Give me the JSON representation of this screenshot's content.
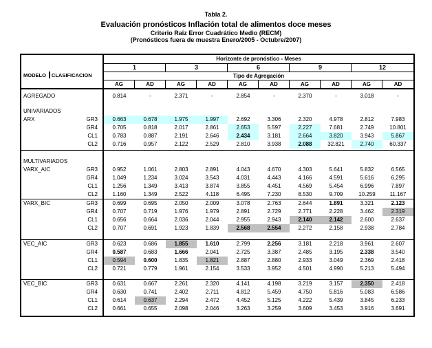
{
  "title": {
    "line1": "Tabla 2.",
    "line2": "Evaluación pronósticos Inflación total de alimentos doce meses",
    "line3": "Criterio Raiz Error Cuadrático Medio (RECM)",
    "line4": "(Pronósticos fuera de muestra Enero/2005 - Octubre/2007)"
  },
  "colors": {
    "highlight_cyan": "#CCFFFF",
    "highlight_gray": "#C0C0C0",
    "text": "#000000",
    "background": "#FFFFFF"
  },
  "table": {
    "modelo_label": "MODELO",
    "clasificacion_label": "CLASIFICACION",
    "horizonte_header": "Horizonte de pronóstico - Meses",
    "horizons": [
      "1",
      "3",
      "6",
      "9",
      "12"
    ],
    "tipo_header": "Tipo de Agregación",
    "agg_labels": [
      "AG",
      "AD"
    ],
    "rows": [
      {
        "kind": "blank",
        "h": 4
      },
      {
        "kind": "data",
        "model": "AGREGADO",
        "cls": "",
        "cells": [
          [
            "0.814",
            "",
            0
          ],
          [
            "-",
            "",
            0
          ],
          [
            "2.371",
            "",
            0
          ],
          [
            "-",
            "",
            0
          ],
          [
            "2.854",
            "",
            0
          ],
          [
            "-",
            "",
            0
          ],
          [
            "2.370",
            "",
            0
          ],
          [
            "-",
            "",
            0
          ],
          [
            "3.018",
            "",
            0
          ],
          [
            "-",
            "",
            0
          ]
        ]
      },
      {
        "kind": "blank",
        "h": 10
      },
      {
        "kind": "section",
        "model": "UNIVARIADOS"
      },
      {
        "kind": "data",
        "model": "ARX",
        "cls": "GR3",
        "cells": [
          [
            "0.663",
            "c",
            0
          ],
          [
            "0.678",
            "c",
            0
          ],
          [
            "1.975",
            "c",
            0
          ],
          [
            "1.997",
            "c",
            0
          ],
          [
            "2.692",
            "",
            0
          ],
          [
            "3.306",
            "",
            0
          ],
          [
            "2.320",
            "",
            0
          ],
          [
            "4.978",
            "",
            0
          ],
          [
            "2.812",
            "",
            0
          ],
          [
            "7.983",
            "",
            0
          ]
        ]
      },
      {
        "kind": "data",
        "model": "",
        "cls": "GR4",
        "cells": [
          [
            "0.705",
            "",
            0
          ],
          [
            "0.818",
            "",
            0
          ],
          [
            "2.017",
            "",
            0
          ],
          [
            "2.861",
            "",
            0
          ],
          [
            "2.653",
            "c",
            0
          ],
          [
            "5.597",
            "",
            0
          ],
          [
            "2.227",
            "c",
            0
          ],
          [
            "7.681",
            "",
            0
          ],
          [
            "2.749",
            "",
            0
          ],
          [
            "10.801",
            "",
            0
          ]
        ]
      },
      {
        "kind": "data",
        "model": "",
        "cls": "CL1",
        "cells": [
          [
            "0.783",
            "",
            0
          ],
          [
            "0.887",
            "",
            0
          ],
          [
            "2.191",
            "",
            0
          ],
          [
            "2.646",
            "",
            0
          ],
          [
            "2.434",
            "c",
            1
          ],
          [
            "3.181",
            "",
            0
          ],
          [
            "2.664",
            "c",
            0
          ],
          [
            "3.820",
            "c",
            0
          ],
          [
            "3.943",
            "",
            0
          ],
          [
            "5.867",
            "c",
            0
          ]
        ]
      },
      {
        "kind": "data",
        "model": "",
        "cls": "CL2",
        "cells": [
          [
            "0.716",
            "",
            0
          ],
          [
            "0.957",
            "",
            0
          ],
          [
            "2.122",
            "",
            0
          ],
          [
            "2.529",
            "",
            0
          ],
          [
            "2.810",
            "",
            0
          ],
          [
            "3.938",
            "",
            0
          ],
          [
            "2.088",
            "c",
            1
          ],
          [
            "32.821",
            "",
            0
          ],
          [
            "2.740",
            "c",
            0
          ],
          [
            "60.337",
            "",
            0
          ]
        ]
      },
      {
        "kind": "blank",
        "h": 2
      },
      {
        "kind": "rule"
      },
      {
        "kind": "blank",
        "h": 10
      },
      {
        "kind": "section",
        "model": "MULTIVARIADOS"
      },
      {
        "kind": "data",
        "model": "VARX_AIC",
        "cls": "GR3",
        "cells": [
          [
            "0.952",
            "",
            0
          ],
          [
            "1.061",
            "",
            0
          ],
          [
            "2.803",
            "",
            0
          ],
          [
            "2.891",
            "",
            0
          ],
          [
            "4.043",
            "",
            0
          ],
          [
            "4.670",
            "",
            0
          ],
          [
            "4.303",
            "",
            0
          ],
          [
            "5.641",
            "",
            0
          ],
          [
            "5.832",
            "",
            0
          ],
          [
            "6.565",
            "",
            0
          ]
        ]
      },
      {
        "kind": "data",
        "model": "",
        "cls": "GR4",
        "cells": [
          [
            "1.049",
            "",
            0
          ],
          [
            "1.234",
            "",
            0
          ],
          [
            "3.024",
            "",
            0
          ],
          [
            "3.543",
            "",
            0
          ],
          [
            "4.031",
            "",
            0
          ],
          [
            "4.443",
            "",
            0
          ],
          [
            "4.166",
            "",
            0
          ],
          [
            "4.591",
            "",
            0
          ],
          [
            "5.616",
            "",
            0
          ],
          [
            "6.295",
            "",
            0
          ]
        ]
      },
      {
        "kind": "data",
        "model": "",
        "cls": "CL1",
        "cells": [
          [
            "1.256",
            "",
            0
          ],
          [
            "1.349",
            "",
            0
          ],
          [
            "3.413",
            "",
            0
          ],
          [
            "3.874",
            "",
            0
          ],
          [
            "3.855",
            "",
            0
          ],
          [
            "4.451",
            "",
            0
          ],
          [
            "4.569",
            "",
            0
          ],
          [
            "5.454",
            "",
            0
          ],
          [
            "6.996",
            "",
            0
          ],
          [
            "7.897",
            "",
            0
          ]
        ]
      },
      {
        "kind": "data",
        "model": "",
        "cls": "CL2",
        "cells": [
          [
            "1.160",
            "",
            0
          ],
          [
            "1.349",
            "",
            0
          ],
          [
            "2.522",
            "",
            0
          ],
          [
            "4.118",
            "",
            0
          ],
          [
            "6.495",
            "",
            0
          ],
          [
            "7.230",
            "",
            0
          ],
          [
            "8.530",
            "",
            0
          ],
          [
            "9.709",
            "",
            0
          ],
          [
            "10.259",
            "",
            0
          ],
          [
            "11.167",
            "",
            0
          ]
        ]
      },
      {
        "kind": "rule"
      },
      {
        "kind": "data",
        "model": "VARX_BIC",
        "cls": "GR3",
        "cells": [
          [
            "0.699",
            "",
            0
          ],
          [
            "0.695",
            "",
            0
          ],
          [
            "2.050",
            "",
            0
          ],
          [
            "2.009",
            "",
            0
          ],
          [
            "3.078",
            "",
            0
          ],
          [
            "2.763",
            "",
            0
          ],
          [
            "2.644",
            "",
            0
          ],
          [
            "1.891",
            "",
            1
          ],
          [
            "3.321",
            "",
            0
          ],
          [
            "2.123",
            "",
            1
          ]
        ]
      },
      {
        "kind": "data",
        "model": "",
        "cls": "GR4",
        "cells": [
          [
            "0.707",
            "",
            0
          ],
          [
            "0.719",
            "",
            0
          ],
          [
            "1.976",
            "",
            0
          ],
          [
            "1.979",
            "",
            0
          ],
          [
            "2.891",
            "",
            0
          ],
          [
            "2.729",
            "",
            0
          ],
          [
            "2.771",
            "",
            0
          ],
          [
            "2.228",
            "",
            0
          ],
          [
            "3.462",
            "",
            0
          ],
          [
            "2.319",
            "g",
            0
          ]
        ]
      },
      {
        "kind": "data",
        "model": "",
        "cls": "CL1",
        "cells": [
          [
            "0.656",
            "",
            0
          ],
          [
            "0.664",
            "",
            0
          ],
          [
            "2.036",
            "",
            0
          ],
          [
            "2.044",
            "",
            0
          ],
          [
            "2.955",
            "",
            0
          ],
          [
            "2.943",
            "",
            0
          ],
          [
            "2.140",
            "g",
            1
          ],
          [
            "2.142",
            "g",
            1
          ],
          [
            "2.600",
            "",
            0
          ],
          [
            "2.637",
            "",
            0
          ]
        ]
      },
      {
        "kind": "data",
        "model": "",
        "cls": "CL2",
        "cells": [
          [
            "0.707",
            "",
            0
          ],
          [
            "0.691",
            "",
            0
          ],
          [
            "1.923",
            "",
            0
          ],
          [
            "1.839",
            "",
            0
          ],
          [
            "2.568",
            "g",
            1
          ],
          [
            "2.554",
            "g",
            1
          ],
          [
            "2.272",
            "",
            0
          ],
          [
            "2.158",
            "",
            0
          ],
          [
            "2.938",
            "",
            0
          ],
          [
            "2.784",
            "",
            0
          ]
        ]
      },
      {
        "kind": "blank",
        "h": 10
      },
      {
        "kind": "rule"
      },
      {
        "kind": "data",
        "model": "VEC_AIC",
        "cls": "GR3",
        "cells": [
          [
            "0.623",
            "",
            0
          ],
          [
            "0.686",
            "",
            0
          ],
          [
            "1.855",
            "g",
            1
          ],
          [
            "1.610",
            "",
            1
          ],
          [
            "2.799",
            "",
            0
          ],
          [
            "2.256",
            "",
            1
          ],
          [
            "3.181",
            "",
            0
          ],
          [
            "2.218",
            "",
            0
          ],
          [
            "3.961",
            "",
            0
          ],
          [
            "2.607",
            "",
            0
          ]
        ]
      },
      {
        "kind": "data",
        "model": "",
        "cls": "GR4",
        "cells": [
          [
            "0.587",
            "",
            1
          ],
          [
            "0.683",
            "",
            0
          ],
          [
            "1.666",
            "",
            1
          ],
          [
            "2.041",
            "",
            0
          ],
          [
            "2.725",
            "",
            0
          ],
          [
            "3.387",
            "",
            0
          ],
          [
            "2.485",
            "",
            0
          ],
          [
            "3.195",
            "",
            0
          ],
          [
            "2.338",
            "",
            1
          ],
          [
            "3.540",
            "",
            0
          ]
        ]
      },
      {
        "kind": "data",
        "model": "",
        "cls": "CL1",
        "cells": [
          [
            "0.594",
            "g",
            0
          ],
          [
            "0.600",
            "",
            1
          ],
          [
            "1.835",
            "",
            0
          ],
          [
            "1.821",
            "g",
            0
          ],
          [
            "2.887",
            "",
            0
          ],
          [
            "2.880",
            "",
            0
          ],
          [
            "2.933",
            "",
            0
          ],
          [
            "3.049",
            "",
            0
          ],
          [
            "2.369",
            "",
            0
          ],
          [
            "2.418",
            "",
            0
          ]
        ]
      },
      {
        "kind": "data",
        "model": "",
        "cls": "CL2",
        "cells": [
          [
            "0.721",
            "",
            0
          ],
          [
            "0.779",
            "",
            0
          ],
          [
            "1.961",
            "",
            0
          ],
          [
            "2.154",
            "",
            0
          ],
          [
            "3.533",
            "",
            0
          ],
          [
            "3.952",
            "",
            0
          ],
          [
            "4.501",
            "",
            0
          ],
          [
            "4.990",
            "",
            0
          ],
          [
            "5.213",
            "",
            0
          ],
          [
            "5.494",
            "",
            0
          ]
        ]
      },
      {
        "kind": "blank",
        "h": 9
      },
      {
        "kind": "rule"
      },
      {
        "kind": "data",
        "model": "VEC_BIC",
        "cls": "GR3",
        "cells": [
          [
            "0.631",
            "",
            0
          ],
          [
            "0.667",
            "",
            0
          ],
          [
            "2.261",
            "",
            0
          ],
          [
            "2.320",
            "",
            0
          ],
          [
            "4.141",
            "",
            0
          ],
          [
            "4.198",
            "",
            0
          ],
          [
            "3.219",
            "",
            0
          ],
          [
            "3.157",
            "",
            0
          ],
          [
            "2.350",
            "g",
            1
          ],
          [
            "2.418",
            "",
            0
          ]
        ]
      },
      {
        "kind": "data",
        "model": "",
        "cls": "GR4",
        "cells": [
          [
            "0.630",
            "",
            0
          ],
          [
            "0.741",
            "",
            0
          ],
          [
            "2.402",
            "",
            0
          ],
          [
            "2.711",
            "",
            0
          ],
          [
            "4.812",
            "",
            0
          ],
          [
            "5.459",
            "",
            0
          ],
          [
            "4.750",
            "",
            0
          ],
          [
            "5.816",
            "",
            0
          ],
          [
            "5.083",
            "",
            0
          ],
          [
            "6.586",
            "",
            0
          ]
        ]
      },
      {
        "kind": "data",
        "model": "",
        "cls": "CL1",
        "cells": [
          [
            "0.614",
            "",
            0
          ],
          [
            "0.637",
            "g",
            0
          ],
          [
            "2.294",
            "",
            0
          ],
          [
            "2.472",
            "",
            0
          ],
          [
            "4.452",
            "",
            0
          ],
          [
            "5.125",
            "",
            0
          ],
          [
            "4.222",
            "",
            0
          ],
          [
            "5.439",
            "",
            0
          ],
          [
            "3.845",
            "",
            0
          ],
          [
            "6.233",
            "",
            0
          ]
        ]
      },
      {
        "kind": "data",
        "model": "",
        "cls": "CL2",
        "cells": [
          [
            "0.661",
            "",
            0
          ],
          [
            "0.655",
            "",
            0
          ],
          [
            "2.098",
            "",
            0
          ],
          [
            "2.046",
            "",
            0
          ],
          [
            "3.263",
            "",
            0
          ],
          [
            "3.259",
            "",
            0
          ],
          [
            "3.609",
            "",
            0
          ],
          [
            "3.453",
            "",
            0
          ],
          [
            "3.916",
            "",
            0
          ],
          [
            "3.691",
            "",
            0
          ]
        ]
      },
      {
        "kind": "blank",
        "h": 4
      }
    ]
  }
}
